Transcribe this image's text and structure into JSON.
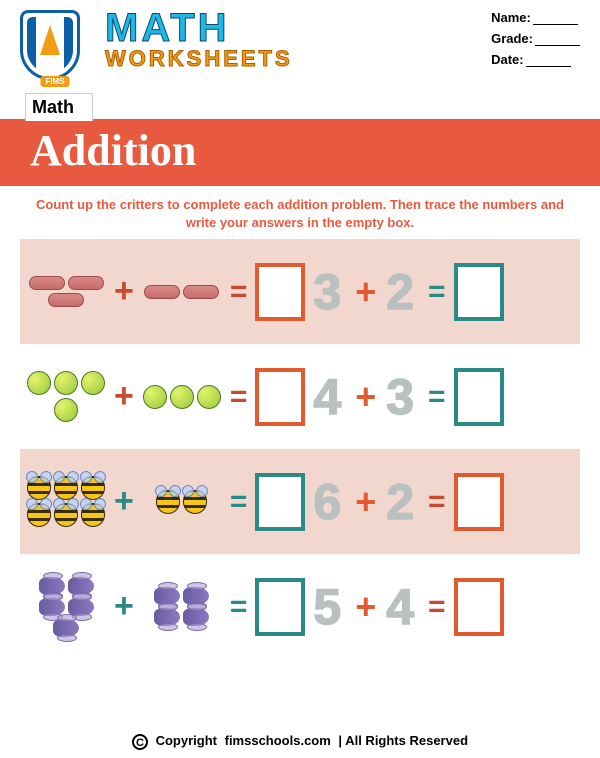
{
  "header": {
    "logo_text": "FIMS",
    "title_line1": "MATH",
    "title_line2": "WORKSHEETS",
    "fields": {
      "name": "Name:",
      "grade": "Grade:",
      "date": "Date:"
    }
  },
  "tab_label": "Math",
  "banner_title": "Addition",
  "instructions": "Count up the critters to complete each addition problem. Then trace the numbers and write your answers in the empty box.",
  "colors": {
    "banner": "#e85a40",
    "accent_orange": "#e25a30",
    "accent_teal": "#2a8a88",
    "shaded_row": "#f2d7cf",
    "title_blue": "#1fb6e8",
    "title_orange": "#f39c12",
    "dotted": "#b9c1c0"
  },
  "problems": [
    {
      "shaded": true,
      "critter_type": "worm",
      "count_a": 3,
      "count_b": 2,
      "trace_a": "3",
      "trace_b": "2",
      "op_color": "orange",
      "box_a_color": "orange",
      "box_b_color": "teal"
    },
    {
      "shaded": false,
      "critter_type": "caterpillar",
      "count_a": 4,
      "count_b": 3,
      "trace_a": "4",
      "trace_b": "3",
      "op_color": "orange",
      "box_a_color": "orange",
      "box_b_color": "teal"
    },
    {
      "shaded": true,
      "critter_type": "bee",
      "count_a": 6,
      "count_b": 2,
      "trace_a": "6",
      "trace_b": "2",
      "op_color": "teal",
      "box_a_color": "teal",
      "box_b_color": "orange"
    },
    {
      "shaded": false,
      "critter_type": "dragonfly",
      "count_a": 5,
      "count_b": 4,
      "trace_a": "5",
      "trace_b": "4",
      "op_color": "teal",
      "box_a_color": "teal",
      "box_b_color": "orange"
    }
  ],
  "footer": {
    "copyright": "Copyright",
    "site": "fimsschools.com",
    "rights": "All Rights Reserved"
  }
}
